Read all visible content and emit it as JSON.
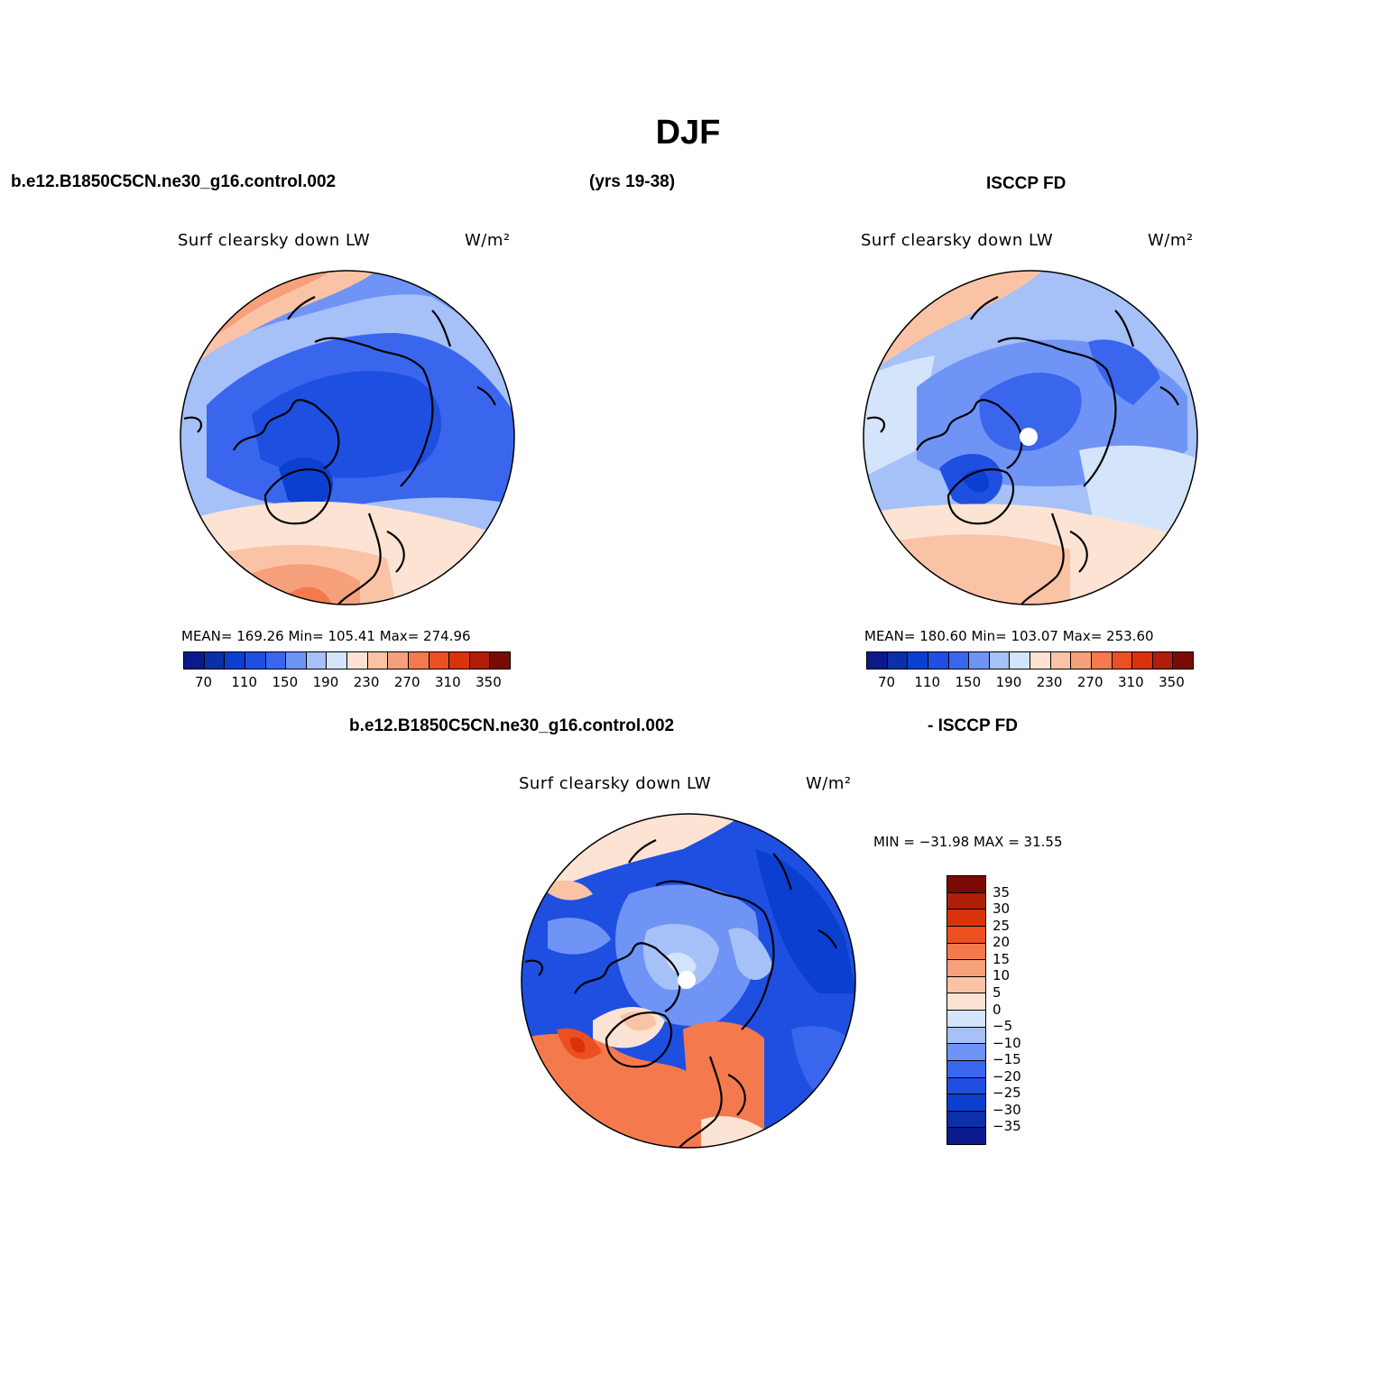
{
  "figure": {
    "title": "DJF",
    "case_label": "b.e12.B1850C5CN.ne30_g16.control.002",
    "years_label": "(yrs 19-38)",
    "obs_label": "ISCCP FD",
    "diff_case_label": "b.e12.B1850C5CN.ne30_g16.control.002",
    "diff_obs_label": "- ISCCP FD"
  },
  "panels": {
    "model": {
      "title": "Surf clearsky down LW",
      "units": "W/m²",
      "stats": "MEAN= 169.26   Min= 105.41   Max= 274.96"
    },
    "obs": {
      "title": "Surf clearsky down LW",
      "units": "W/m²",
      "stats": "MEAN= 180.60   Min= 103.07   Max= 253.60"
    },
    "diff": {
      "title": "Surf clearsky down LW",
      "units": "W/m²",
      "stats": "MIN = −31.98 MAX =  31.55"
    }
  },
  "colorbars": {
    "main": {
      "colors": [
        "#0a1a8c",
        "#0a2fa8",
        "#0b3fd0",
        "#1e4fe0",
        "#3a66ee",
        "#6f94f6",
        "#a6c0f8",
        "#d4e4fb",
        "#fde3d4",
        "#fbc3a6",
        "#f7a07c",
        "#f47a4e",
        "#ec4f22",
        "#d9320c",
        "#b01e08",
        "#7a0a06"
      ],
      "ticks": [
        "70",
        "110",
        "150",
        "190",
        "230",
        "270",
        "310",
        "350"
      ]
    },
    "diff": {
      "colors": [
        "#7a0a06",
        "#b01e08",
        "#d9320c",
        "#ec4f22",
        "#f47a4e",
        "#f7a07c",
        "#fbc3a6",
        "#fde3d4",
        "#d4e4fb",
        "#a6c0f8",
        "#6f94f6",
        "#3a66ee",
        "#1e4fe0",
        "#0b3fd0",
        "#0a2fa8",
        "#0a1a8c"
      ],
      "ticks": [
        "35",
        "30",
        "25",
        "20",
        "15",
        "10",
        "5",
        "0",
        "−5",
        "−10",
        "−15",
        "−20",
        "−25",
        "−30",
        "−35"
      ]
    }
  }
}
